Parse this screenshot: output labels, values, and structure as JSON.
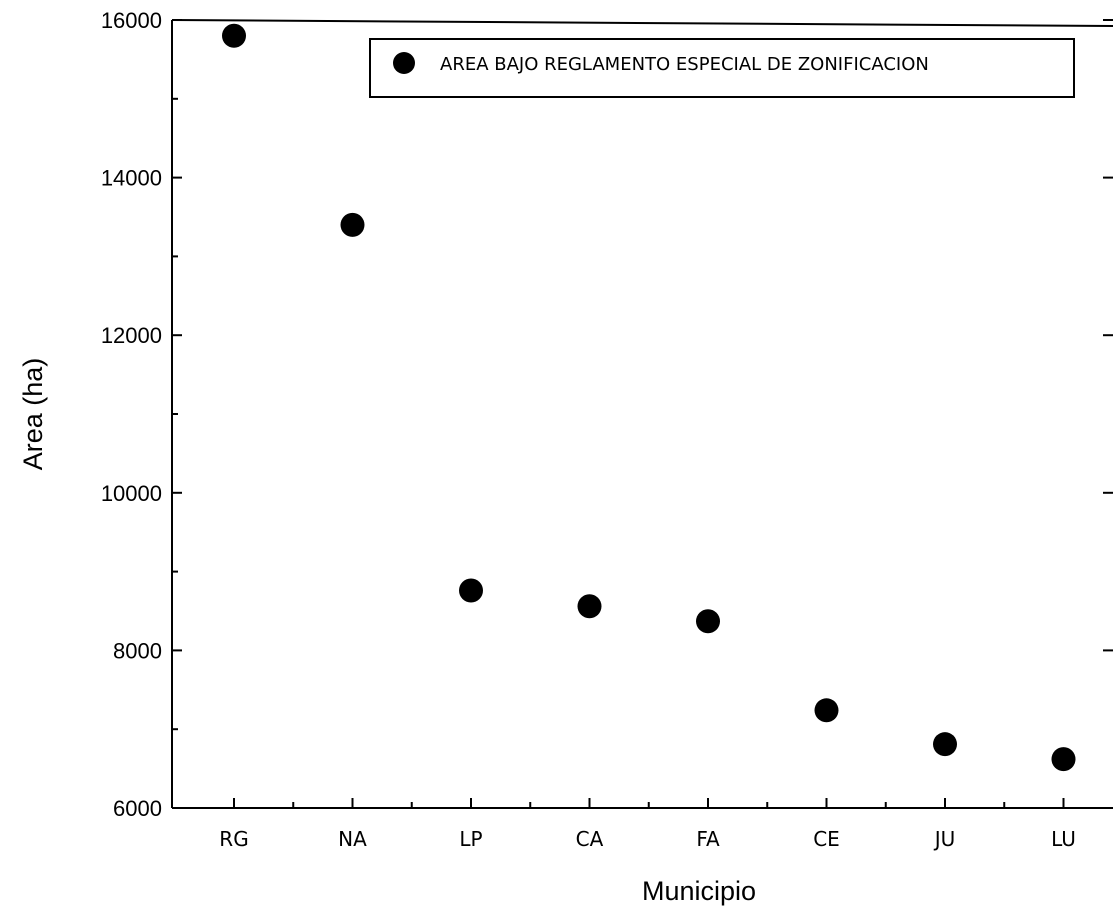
{
  "chart_data": {
    "type": "scatter",
    "title": "",
    "xlabel": "Municipio",
    "ylabel": "Area (ha)",
    "categories": [
      "RG",
      "NA",
      "LP",
      "CA",
      "FA",
      "CE",
      "JU",
      "LU"
    ],
    "series": [
      {
        "name": "AREA BAJO REGLAMENTO ESPECIAL DE ZONIFICACION",
        "values": [
          15800,
          13400,
          8760,
          8560,
          8370,
          7240,
          6810,
          6620
        ],
        "color": "#000000"
      }
    ],
    "ylim": [
      6000,
      16000
    ],
    "yticks": [
      "6000",
      "8000",
      "10000",
      "12000",
      "14000",
      "16000"
    ],
    "grid": false,
    "legend_position": "top-right"
  }
}
